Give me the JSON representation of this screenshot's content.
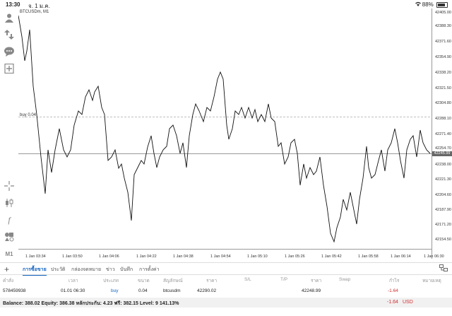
{
  "status_bar": {
    "time": "13:30",
    "date": "จ. 1 ม.ค.",
    "wifi_icon": "wifi-icon",
    "battery": "88%"
  },
  "chart": {
    "symbol_label": "BTCUSDm, M1",
    "buy_label": "buy 0.04",
    "current_price": "42245.99",
    "y_labels": [
      "42405.00",
      "42388.30",
      "42371.60",
      "42354.90",
      "42338.20",
      "42321.50",
      "42304.80",
      "42288.10",
      "42271.40",
      "42254.70",
      "42238.00",
      "42221.30",
      "42204.60",
      "42187.90",
      "42171.20",
      "42154.50"
    ],
    "x_labels": [
      "1 Jan 03:34",
      "1 Jan 03:50",
      "1 Jan 04:06",
      "1 Jan 04:22",
      "1 Jan 04:38",
      "1 Jan 04:54",
      "1 Jan 05:10",
      "1 Jan 05:26",
      "1 Jan 05:42",
      "1 Jan 05:58",
      "1 Jan 06:14",
      "1 Jan 06:30"
    ]
  },
  "toolbar": [
    "profile-icon",
    "trade-icon",
    "chat-icon",
    "add-chart-icon",
    "crosshair-icon",
    "candles-icon",
    "indicators-icon",
    "objects-icon",
    "timeframe-label"
  ],
  "timeframe": "M1",
  "tabs": [
    "การซื้อขาย",
    "ประวัติ",
    "กล่องจดหมาย",
    "ข่าว",
    "บันทึก",
    "การตั้งค่า"
  ],
  "active_tab": 0,
  "table": {
    "headers": [
      "คำสั่ง",
      "เวลา",
      "ประเภท",
      "ขนาด",
      "สัญลักษณ์",
      "ราคา",
      "S/L",
      "T/P",
      "ราคา",
      "Swap",
      "กำไร",
      "หมายเหตุ"
    ],
    "row": [
      "578459938",
      "01.01 06:30",
      "buy",
      "0.04",
      "btcusdm",
      "42290.02",
      "",
      "",
      "42248.99",
      "",
      "-1.64",
      ""
    ]
  },
  "footer": {
    "balance_text": "Balance: 388.02 Equity: 386.38 หลักประกัน: 4.23 ฟรี: 382.15 Level: 9 141.13%",
    "profit": "-1.64",
    "currency": "USD"
  }
}
